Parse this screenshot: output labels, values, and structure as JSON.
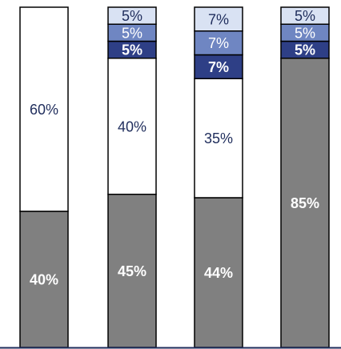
{
  "chart_data": {
    "type": "bar",
    "stacked": true,
    "normalized_percent": true,
    "categories": [
      "",
      "",
      "",
      ""
    ],
    "series": [
      {
        "values": [
          40,
          45,
          44,
          85
        ],
        "labels": [
          "40%",
          "45%",
          "44%",
          "85%"
        ],
        "color": "#808080",
        "label_color": "#ffffff",
        "bold": true
      },
      {
        "values": [
          60,
          40,
          35,
          0
        ],
        "labels": [
          "60%",
          "40%",
          "35%",
          ""
        ],
        "color": "#ffffff",
        "label_color": "#1f2d5c",
        "bold": false
      },
      {
        "values": [
          0,
          5,
          7,
          5
        ],
        "labels": [
          "",
          "5%",
          "7%",
          "5%"
        ],
        "color": "#2e3f86",
        "label_color": "#ffffff",
        "bold": true
      },
      {
        "values": [
          0,
          5,
          7,
          5
        ],
        "labels": [
          "",
          "5%",
          "7%",
          "5%"
        ],
        "color": "#6f86c2",
        "label_color": "#ffffff",
        "bold": false
      },
      {
        "values": [
          0,
          5,
          7,
          5
        ],
        "labels": [
          "",
          "5%",
          "7%",
          "5%"
        ],
        "color": "#d9e2f3",
        "label_color": "#1f2d5c",
        "bold": false
      }
    ],
    "ylim": [
      0,
      100
    ],
    "grid": false,
    "legend": "none",
    "axis_color": "#1f2d5c"
  }
}
